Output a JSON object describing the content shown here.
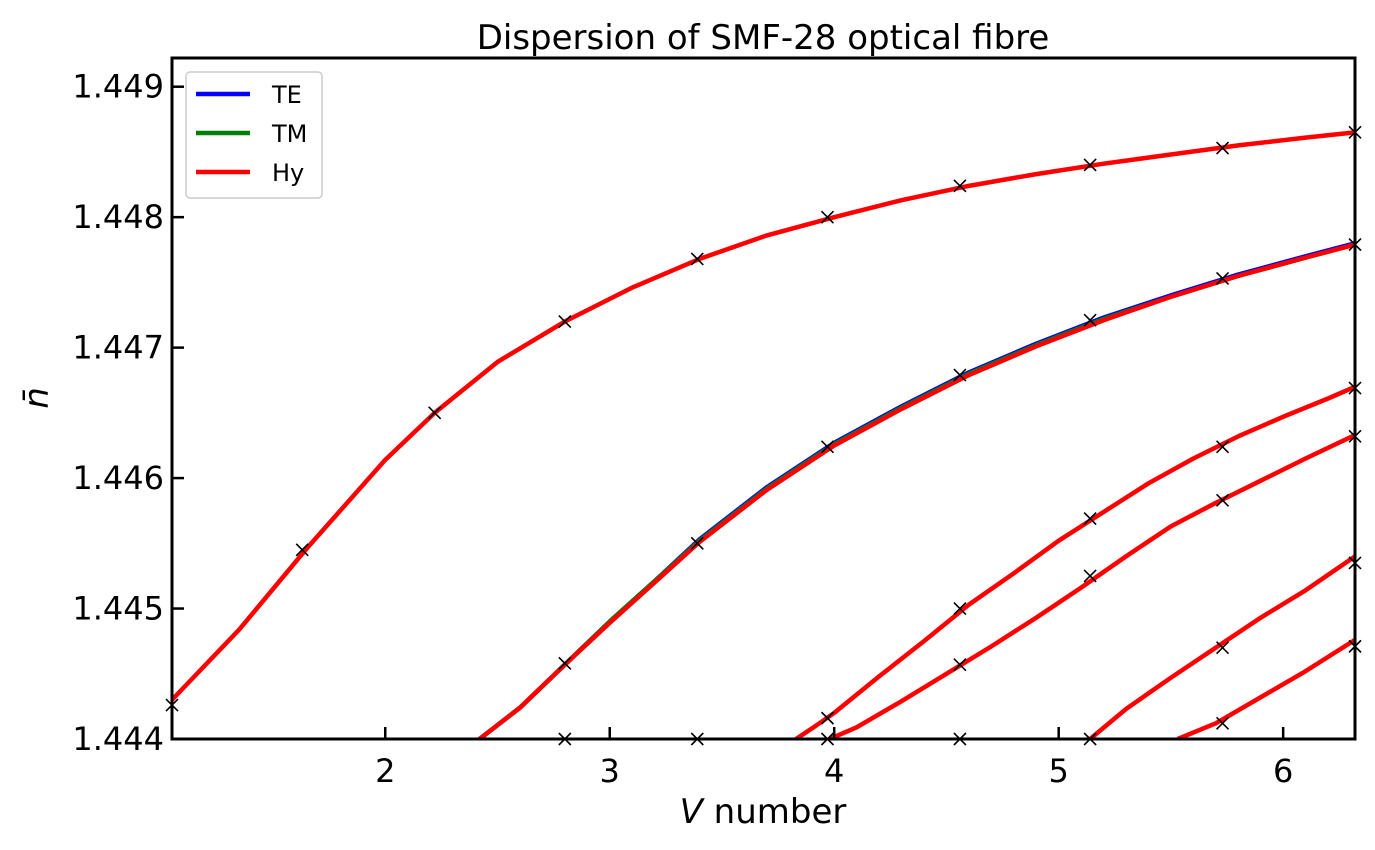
{
  "chart_data": {
    "type": "line",
    "title": "Dispersion of SMF-28 optical fibre",
    "xlabel_italic": "V",
    "xlabel_rest": " number",
    "ylabel": "n̄",
    "xlim": [
      1.05,
      6.32
    ],
    "ylim": [
      1.444,
      1.44922
    ],
    "xticks": [
      2,
      3,
      4,
      5,
      6
    ],
    "xtick_labels": [
      "2",
      "3",
      "4",
      "5",
      "6"
    ],
    "yticks": [
      1.444,
      1.445,
      1.446,
      1.447,
      1.448,
      1.449
    ],
    "ytick_labels": [
      "1.444",
      "1.445",
      "1.446",
      "1.447",
      "1.448",
      "1.449"
    ],
    "legend": {
      "position": "top-left",
      "entries": [
        {
          "name": "TE",
          "color": "#0000ff"
        },
        {
          "name": "TM",
          "color": "#008000"
        },
        {
          "name": "Hy",
          "color": "#ff0000"
        }
      ]
    },
    "series": [
      {
        "name": "Hy",
        "color": "#ff0000",
        "points": [
          [
            1.05,
            1.4443
          ],
          [
            1.35,
            1.44484
          ],
          [
            1.65,
            1.44546
          ],
          [
            2.0,
            1.44614
          ],
          [
            2.22,
            1.4465
          ],
          [
            2.5,
            1.44689
          ],
          [
            2.8,
            1.4472
          ],
          [
            3.1,
            1.44746
          ],
          [
            3.4,
            1.44768
          ],
          [
            3.7,
            1.44786
          ],
          [
            4.0,
            1.448
          ],
          [
            4.3,
            1.44813
          ],
          [
            4.6,
            1.44824
          ],
          [
            4.9,
            1.44833
          ],
          [
            5.2,
            1.44841
          ],
          [
            5.5,
            1.44848
          ],
          [
            5.8,
            1.44855
          ],
          [
            6.1,
            1.44861
          ],
          [
            6.32,
            1.44865
          ]
        ]
      },
      {
        "name": "TE",
        "color": "#0000ff",
        "points": [
          [
            2.42,
            1.444
          ],
          [
            2.6,
            1.44424
          ],
          [
            2.8,
            1.44457
          ],
          [
            3.0,
            1.4449
          ],
          [
            3.2,
            1.44521
          ],
          [
            3.4,
            1.44553
          ],
          [
            3.7,
            1.44593
          ],
          [
            4.0,
            1.44627
          ],
          [
            4.3,
            1.44655
          ],
          [
            4.6,
            1.44681
          ],
          [
            4.9,
            1.44703
          ],
          [
            5.2,
            1.44723
          ],
          [
            5.5,
            1.4474
          ],
          [
            5.8,
            1.44756
          ],
          [
            6.1,
            1.4477
          ],
          [
            6.32,
            1.4478
          ]
        ]
      },
      {
        "name": "TM",
        "color": "#008000",
        "points": [
          [
            2.42,
            1.444
          ],
          [
            2.6,
            1.44424
          ],
          [
            2.8,
            1.44457
          ],
          [
            3.0,
            1.4449
          ],
          [
            3.2,
            1.44521
          ],
          [
            3.4,
            1.44552
          ],
          [
            3.7,
            1.44592
          ],
          [
            4.0,
            1.44626
          ],
          [
            4.3,
            1.44654
          ],
          [
            4.6,
            1.4468
          ],
          [
            4.9,
            1.44702
          ],
          [
            5.2,
            1.44722
          ],
          [
            5.5,
            1.44739
          ],
          [
            5.8,
            1.44755
          ],
          [
            6.1,
            1.44769
          ],
          [
            6.32,
            1.44779
          ]
        ]
      },
      {
        "name": "Hy",
        "color": "#ff0000",
        "points": [
          [
            2.42,
            1.444
          ],
          [
            2.6,
            1.44424
          ],
          [
            2.8,
            1.44457
          ],
          [
            3.0,
            1.44489
          ],
          [
            3.2,
            1.4452
          ],
          [
            3.4,
            1.44551
          ],
          [
            3.7,
            1.44591
          ],
          [
            4.0,
            1.44625
          ],
          [
            4.3,
            1.44653
          ],
          [
            4.6,
            1.44679
          ],
          [
            4.9,
            1.44701
          ],
          [
            5.2,
            1.44721
          ],
          [
            5.5,
            1.44739
          ],
          [
            5.8,
            1.44755
          ],
          [
            6.1,
            1.44769
          ],
          [
            6.32,
            1.44779
          ]
        ]
      },
      {
        "name": "Hy",
        "color": "#ff0000",
        "points": [
          [
            3.83,
            1.444
          ],
          [
            3.9,
            1.44408
          ],
          [
            4.0,
            1.4442
          ],
          [
            4.2,
            1.44448
          ],
          [
            4.4,
            1.44475
          ],
          [
            4.6,
            1.44503
          ],
          [
            4.8,
            1.44527
          ],
          [
            5.0,
            1.44552
          ],
          [
            5.2,
            1.44574
          ],
          [
            5.4,
            1.44596
          ],
          [
            5.6,
            1.44615
          ],
          [
            5.8,
            1.44632
          ],
          [
            6.0,
            1.44647
          ],
          [
            6.2,
            1.44661
          ],
          [
            6.32,
            1.4467
          ]
        ]
      },
      {
        "name": "Hy",
        "color": "#ff0000",
        "points": [
          [
            3.98,
            1.444
          ],
          [
            4.1,
            1.44409
          ],
          [
            4.3,
            1.44429
          ],
          [
            4.5,
            1.4445
          ],
          [
            4.7,
            1.44471
          ],
          [
            4.9,
            1.44493
          ],
          [
            5.1,
            1.44516
          ],
          [
            5.3,
            1.4454
          ],
          [
            5.5,
            1.44563
          ],
          [
            5.7,
            1.44581
          ],
          [
            5.9,
            1.44598
          ],
          [
            6.1,
            1.44615
          ],
          [
            6.32,
            1.44633
          ]
        ]
      },
      {
        "name": "Hy",
        "color": "#ff0000",
        "points": [
          [
            5.14,
            1.444
          ],
          [
            5.3,
            1.44423
          ],
          [
            5.5,
            1.44447
          ],
          [
            5.7,
            1.4447
          ],
          [
            5.9,
            1.44493
          ],
          [
            6.1,
            1.44514
          ],
          [
            6.32,
            1.4454
          ]
        ]
      },
      {
        "name": "Hy",
        "color": "#ff0000",
        "points": [
          [
            5.53,
            1.444
          ],
          [
            5.7,
            1.44412
          ],
          [
            5.9,
            1.44432
          ],
          [
            6.1,
            1.44452
          ],
          [
            6.32,
            1.44476
          ]
        ]
      }
    ],
    "markers": {
      "symbol": "x",
      "color": "#000000",
      "points": [
        [
          1.05,
          1.44426
        ],
        [
          1.63,
          1.44545
        ],
        [
          2.22,
          1.4465
        ],
        [
          2.8,
          1.4472
        ],
        [
          3.39,
          1.44768
        ],
        [
          3.97,
          1.448
        ],
        [
          4.56,
          1.44824
        ],
        [
          5.14,
          1.4484
        ],
        [
          5.73,
          1.44853
        ],
        [
          6.32,
          1.44865
        ],
        [
          2.8,
          1.44458
        ],
        [
          3.39,
          1.4455
        ],
        [
          3.97,
          1.44624
        ],
        [
          4.56,
          1.44679
        ],
        [
          5.14,
          1.44721
        ],
        [
          5.73,
          1.44753
        ],
        [
          6.32,
          1.44779
        ],
        [
          3.97,
          1.44416
        ],
        [
          4.56,
          1.445
        ],
        [
          5.14,
          1.44569
        ],
        [
          5.73,
          1.44624
        ],
        [
          6.32,
          1.44669
        ],
        [
          3.97,
          1.444
        ],
        [
          4.56,
          1.44457
        ],
        [
          5.14,
          1.44525
        ],
        [
          5.73,
          1.44583
        ],
        [
          6.32,
          1.44632
        ],
        [
          5.14,
          1.444
        ],
        [
          5.73,
          1.4447
        ],
        [
          6.32,
          1.44535
        ],
        [
          5.73,
          1.44412
        ],
        [
          6.32,
          1.44471
        ],
        [
          2.8,
          1.444
        ],
        [
          3.39,
          1.444
        ],
        [
          4.56,
          1.444
        ]
      ]
    }
  }
}
